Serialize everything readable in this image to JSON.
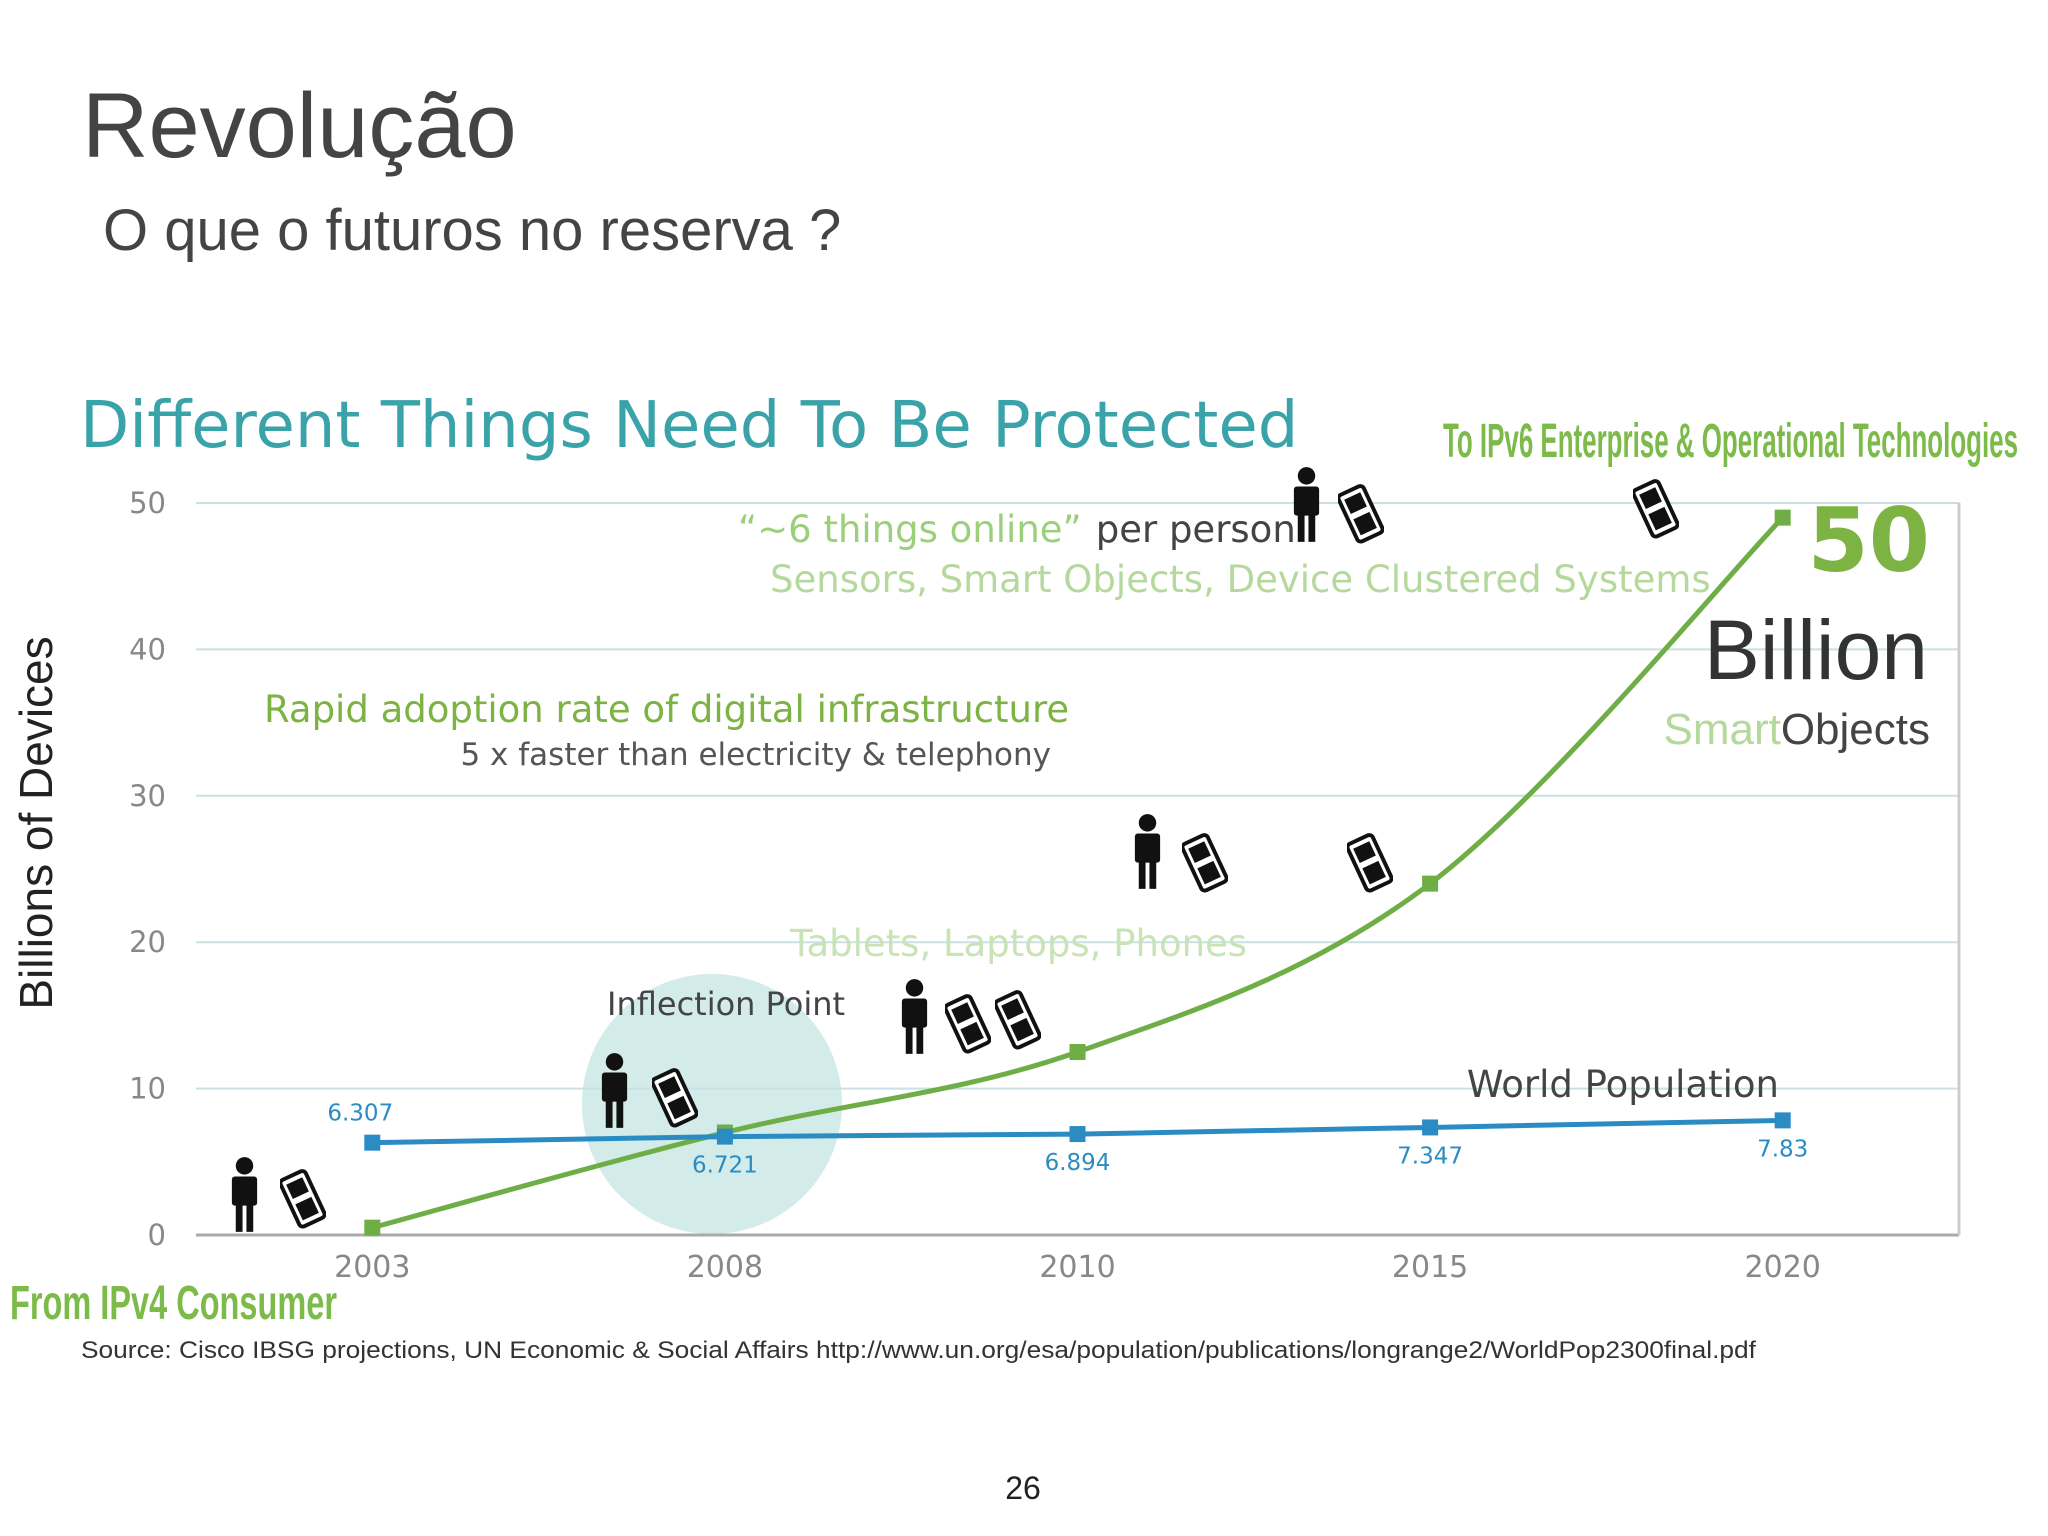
{
  "slide": {
    "title": "Revolução",
    "subtitle": "O que o futuros no reserva ?",
    "page_number": "26"
  },
  "chart_data": {
    "type": "line",
    "title": "Different Things Need To Be Protected",
    "y_label": "Billions of Devices",
    "categories": [
      "2003",
      "2008",
      "2010",
      "2015",
      "2020"
    ],
    "series": [
      {
        "color": "#6fad46",
        "values": [
          0.5,
          7,
          12.5,
          24,
          49
        ]
      },
      {
        "name": "World Population",
        "color": "#2b8cc4",
        "values": [
          6.307,
          6.721,
          6.894,
          7.347,
          7.83
        ]
      }
    ],
    "ylim": [
      0,
      50
    ],
    "yticks": [
      0,
      10,
      20,
      30,
      40,
      50
    ],
    "grid": true,
    "annotations": {
      "top_right": "To IPv6 Enterprise & Operational Technologies",
      "bottom_left": "From IPv4 Consumer",
      "things_online": "“~6 things online”",
      "per_person": "per person",
      "sensors": "Sensors, Smart Objects, Device Clustered Systems",
      "rapid": "Rapid adoption rate of digital infrastructure",
      "faster": "5 x faster than electricity & telephony",
      "tablets": "Tablets, Laptops, Phones",
      "inflection": "Inflection Point",
      "big_number": "50",
      "billion": "Billion",
      "smart": "Smart",
      "objects": "Objects"
    },
    "source": "Source: Cisco IBSG projections, UN Economic & Social Affairs http://www.un.org/esa/population/publications/longrange2/WorldPop2300final.pdf"
  }
}
